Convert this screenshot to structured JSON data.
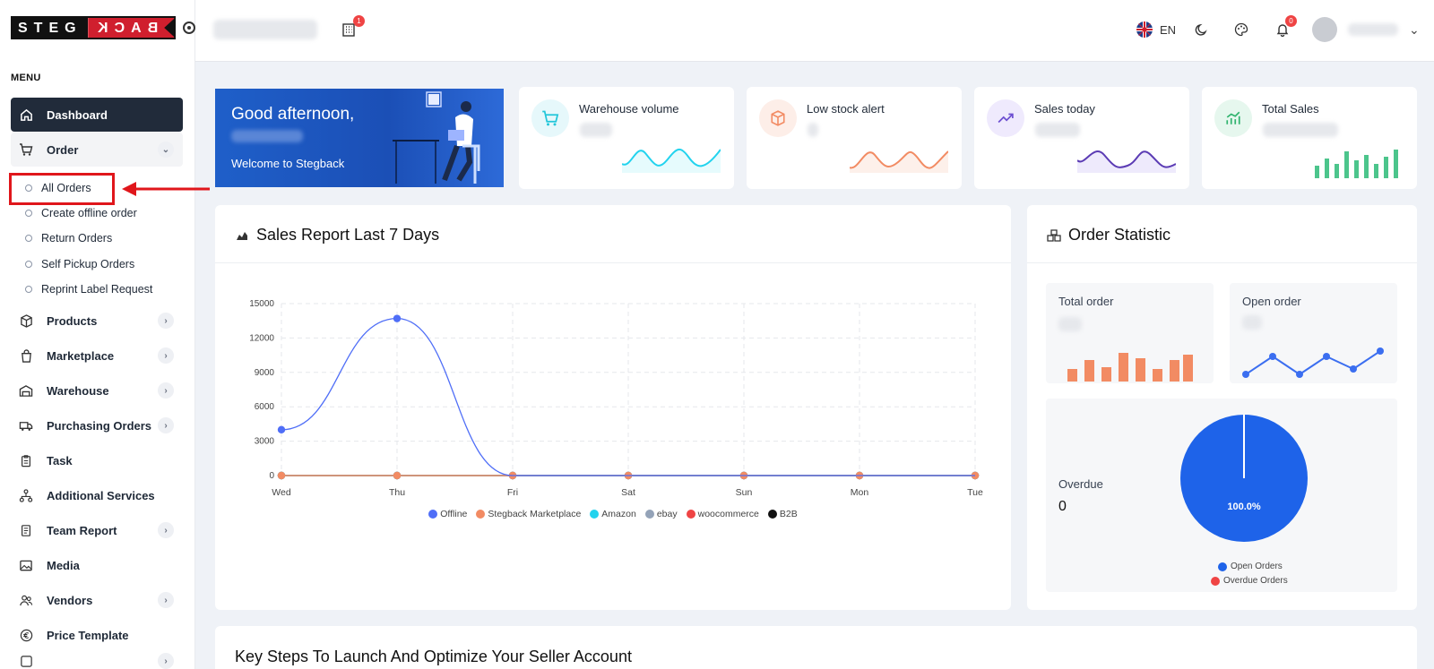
{
  "brand": {
    "logo_left": "STEG",
    "logo_right": "BACK"
  },
  "sidebar": {
    "menu_title": "MENU",
    "items": [
      {
        "label": "Dashboard"
      },
      {
        "label": "Order"
      },
      {
        "label": "Products"
      },
      {
        "label": "Marketplace"
      },
      {
        "label": "Warehouse"
      },
      {
        "label": "Purchasing Orders"
      },
      {
        "label": "Task"
      },
      {
        "label": "Additional Services"
      },
      {
        "label": "Team Report"
      },
      {
        "label": "Media"
      },
      {
        "label": "Vendors"
      },
      {
        "label": "Price Template"
      }
    ],
    "order_sub": [
      {
        "label": "All Orders"
      },
      {
        "label": "Create offline order"
      },
      {
        "label": "Return Orders"
      },
      {
        "label": "Self Pickup Orders"
      },
      {
        "label": "Reprint Label Request"
      }
    ]
  },
  "header": {
    "building_badge": "1",
    "language": "EN",
    "notification_count": "0"
  },
  "welcome": {
    "greeting": "Good afternoon,",
    "subtitle": "Welcome to Stegback"
  },
  "stats": {
    "warehouse_volume": "Warehouse volume",
    "low_stock": "Low stock alert",
    "sales_today": "Sales today",
    "total_sales": "Total Sales"
  },
  "sales_report": {
    "title": "Sales Report Last 7 Days"
  },
  "order_statistic": {
    "title": "Order Statistic",
    "total_order": "Total order",
    "open_order": "Open order",
    "overdue_label": "Overdue",
    "overdue_value": "0",
    "pie_label": "100.0%",
    "legend": [
      "Open Orders",
      "Overdue Orders"
    ]
  },
  "key_steps": {
    "title": "Key Steps To Launch And Optimize Your Seller Account"
  },
  "colors": {
    "accent": "#212b3a",
    "primary": "#1e63e9",
    "red": "#e0161b"
  },
  "chart_data": {
    "type": "line",
    "title": "Sales Report Last 7 Days",
    "categories": [
      "Wed",
      "Thu",
      "Fri",
      "Sat",
      "Sun",
      "Mon",
      "Tue"
    ],
    "ylim": [
      0,
      15000
    ],
    "yticks": [
      "15000",
      "12000",
      "9000",
      "6000",
      "3000",
      "0"
    ],
    "legend_position": "bottom",
    "series": [
      {
        "name": "Offline",
        "color": "#4f6ef7",
        "values": [
          4000,
          13700,
          0,
          0,
          0,
          0,
          0
        ]
      },
      {
        "name": "Stegback Marketplace",
        "color": "#f28b63",
        "values": [
          0,
          0,
          0,
          0,
          0,
          0,
          0
        ]
      },
      {
        "name": "Amazon",
        "color": "#22d3ee",
        "values": [
          0,
          0,
          0,
          0,
          0,
          0,
          0
        ]
      },
      {
        "name": "ebay",
        "color": "#94a3b8",
        "values": [
          0,
          0,
          0,
          0,
          0,
          0,
          0
        ]
      },
      {
        "name": "woocommerce",
        "color": "#ef4444",
        "values": [
          0,
          0,
          0,
          0,
          0,
          0,
          0
        ]
      },
      {
        "name": "B2B",
        "color": "#111111",
        "values": [
          0,
          0,
          0,
          0,
          0,
          0,
          0
        ]
      }
    ]
  }
}
